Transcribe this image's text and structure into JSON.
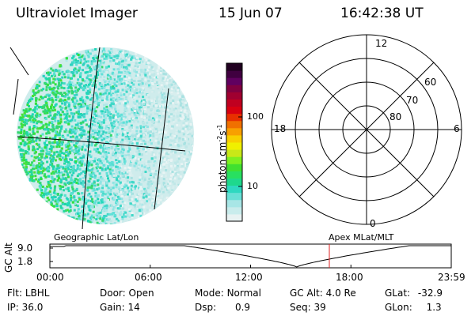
{
  "header": {
    "title": "Ultraviolet Imager",
    "date": "15 Jun 07",
    "time": "16:42:38 UT"
  },
  "colorbar": {
    "label_base": "photon cm",
    "label_exp1": "-2",
    "label_mid": "s",
    "label_exp2": "-1",
    "ticks": [
      "100",
      "10"
    ],
    "colors": [
      "#e8f2f2",
      "#c9ecec",
      "#a8e6e6",
      "#68e0d6",
      "#2ed8c0",
      "#1ed88c",
      "#28e060",
      "#40e030",
      "#7ef020",
      "#c8e818",
      "#f0f000",
      "#f8d000",
      "#f8a000",
      "#f07000",
      "#e83000",
      "#d80010",
      "#c00020",
      "#a00030",
      "#800040",
      "#600060",
      "#400040",
      "#200020"
    ]
  },
  "polar_plot": {
    "lat_labels": [
      "60",
      "70",
      "80"
    ],
    "mlt_labels": {
      "top": "12",
      "left": "18",
      "right": "6",
      "bottom": "0"
    }
  },
  "timeline": {
    "left_title": "Geographic Lat/Lon",
    "right_title": "Apex MLat/MLT",
    "y_axis_label": "GC Alt",
    "y_ticks": [
      "9.0",
      "1.8"
    ],
    "x_ticks": [
      "00:00",
      "06:00",
      "12:00",
      "18:00",
      "23:59"
    ],
    "current_time_fraction": 0.6963,
    "marker_color": "#e02020"
  },
  "footer": {
    "row1": [
      {
        "label": "Flt:",
        "value": "LBHL"
      },
      {
        "label": "Door:",
        "value": "Open"
      },
      {
        "label": "Mode:",
        "value": "Normal"
      },
      {
        "label": "GC Alt:",
        "value": "4.0 Re"
      },
      {
        "label": "GLat:",
        "value": "-32.9"
      }
    ],
    "row2": [
      {
        "label": "IP:",
        "value": "36.0"
      },
      {
        "label": "Gain:",
        "value": "14"
      },
      {
        "label": "Dsp:",
        "value": "0.9"
      },
      {
        "label": "Seq:",
        "value": "39"
      },
      {
        "label": "GLon:",
        "value": "1.3"
      }
    ]
  }
}
